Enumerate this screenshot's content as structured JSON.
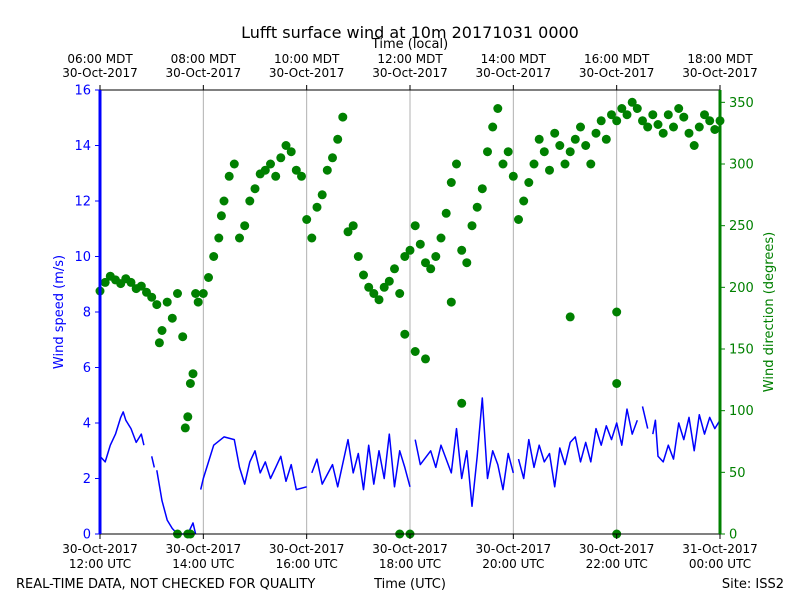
{
  "chart_data": {
    "type": "line+scatter",
    "title": "Lufft surface wind at 10m 20171031 0000",
    "top_axis_label": "Time (local)",
    "bottom_axis_label": "Time (UTC)",
    "footer_left": "REAL-TIME DATA, NOT CHECKED FOR QUALITY",
    "footer_right": "Site: ISS2",
    "ylabel_left": "Wind speed (m/s)",
    "ylabel_right": "Wind direction (degrees)",
    "colors": {
      "speed": "#0000ff",
      "direction": "#008000",
      "grid": "#b0b0b0"
    },
    "x_range_hours": [
      12,
      24
    ],
    "y_left_range": [
      0,
      16
    ],
    "y_right_range": [
      0,
      360
    ],
    "y_left_ticks": [
      "0",
      "2",
      "4",
      "6",
      "8",
      "10",
      "12",
      "14",
      "16"
    ],
    "y_right_ticks": [
      "0",
      "50",
      "100",
      "150",
      "200",
      "250",
      "300",
      "350"
    ],
    "bottom_ticks": [
      {
        "hour": 12,
        "line1": "30-Oct-2017",
        "line2": "12:00 UTC"
      },
      {
        "hour": 14,
        "line1": "30-Oct-2017",
        "line2": "14:00 UTC"
      },
      {
        "hour": 16,
        "line1": "30-Oct-2017",
        "line2": "16:00 UTC"
      },
      {
        "hour": 18,
        "line1": "30-Oct-2017",
        "line2": "18:00 UTC"
      },
      {
        "hour": 20,
        "line1": "30-Oct-2017",
        "line2": "20:00 UTC"
      },
      {
        "hour": 22,
        "line1": "30-Oct-2017",
        "line2": "22:00 UTC"
      },
      {
        "hour": 24,
        "line1": "31-Oct-2017",
        "line2": "00:00 UTC"
      }
    ],
    "top_ticks": [
      {
        "hour": 12,
        "line1": "06:00 MDT",
        "line2": "30-Oct-2017"
      },
      {
        "hour": 14,
        "line1": "08:00 MDT",
        "line2": "30-Oct-2017"
      },
      {
        "hour": 16,
        "line1": "10:00 MDT",
        "line2": "30-Oct-2017"
      },
      {
        "hour": 18,
        "line1": "12:00 MDT",
        "line2": "30-Oct-2017"
      },
      {
        "hour": 20,
        "line1": "14:00 MDT",
        "line2": "30-Oct-2017"
      },
      {
        "hour": 22,
        "line1": "16:00 MDT",
        "line2": "30-Oct-2017"
      },
      {
        "hour": 24,
        "line1": "18:00 MDT",
        "line2": "30-Oct-2017"
      }
    ],
    "speed_series": {
      "name": "Wind speed (m/s)",
      "segments": [
        [
          [
            12.0,
            2.8
          ],
          [
            12.1,
            2.6
          ],
          [
            12.2,
            3.2
          ],
          [
            12.3,
            3.6
          ],
          [
            12.4,
            4.2
          ],
          [
            12.45,
            4.4
          ],
          [
            12.5,
            4.1
          ],
          [
            12.6,
            3.8
          ],
          [
            12.7,
            3.3
          ],
          [
            12.8,
            3.6
          ],
          [
            12.85,
            3.2
          ]
        ],
        [
          [
            13.0,
            2.8
          ],
          [
            13.05,
            2.4
          ]
        ],
        [
          [
            13.1,
            2.3
          ],
          [
            13.2,
            1.2
          ],
          [
            13.3,
            0.5
          ],
          [
            13.4,
            0.2
          ],
          [
            13.5,
            0.0
          ],
          [
            13.7,
            0.0
          ],
          [
            13.8,
            0.4
          ],
          [
            13.85,
            0.0
          ]
        ],
        [
          [
            13.95,
            1.6
          ],
          [
            14.0,
            2.0
          ],
          [
            14.1,
            2.6
          ],
          [
            14.2,
            3.2
          ],
          [
            14.4,
            3.5
          ],
          [
            14.6,
            3.4
          ],
          [
            14.7,
            2.4
          ],
          [
            14.8,
            1.8
          ],
          [
            14.9,
            2.6
          ],
          [
            15.0,
            3.0
          ],
          [
            15.1,
            2.2
          ],
          [
            15.2,
            2.6
          ],
          [
            15.3,
            2.0
          ],
          [
            15.4,
            2.4
          ],
          [
            15.5,
            2.8
          ],
          [
            15.6,
            1.9
          ],
          [
            15.7,
            2.5
          ],
          [
            15.8,
            1.6
          ],
          [
            16.0,
            1.7
          ]
        ],
        [
          [
            16.1,
            2.2
          ],
          [
            16.2,
            2.7
          ],
          [
            16.3,
            1.8
          ],
          [
            16.5,
            2.5
          ],
          [
            16.6,
            1.7
          ],
          [
            16.8,
            3.4
          ],
          [
            16.9,
            2.2
          ],
          [
            17.0,
            2.9
          ],
          [
            17.1,
            1.6
          ],
          [
            17.2,
            3.2
          ],
          [
            17.3,
            1.8
          ],
          [
            17.4,
            3.0
          ],
          [
            17.5,
            2.0
          ],
          [
            17.6,
            3.6
          ],
          [
            17.7,
            1.7
          ],
          [
            17.8,
            3.0
          ],
          [
            17.9,
            2.4
          ],
          [
            18.0,
            1.7
          ]
        ],
        [
          [
            18.1,
            3.4
          ],
          [
            18.2,
            2.5
          ],
          [
            18.4,
            3.0
          ],
          [
            18.5,
            2.4
          ],
          [
            18.6,
            3.2
          ],
          [
            18.8,
            2.2
          ],
          [
            18.9,
            3.8
          ],
          [
            19.0,
            2.0
          ],
          [
            19.1,
            3.0
          ],
          [
            19.2,
            1.0
          ],
          [
            19.3,
            2.8
          ],
          [
            19.4,
            4.9
          ],
          [
            19.5,
            2.0
          ],
          [
            19.6,
            3.0
          ],
          [
            19.7,
            2.5
          ],
          [
            19.8,
            1.6
          ],
          [
            19.9,
            2.9
          ],
          [
            20.0,
            2.2
          ]
        ],
        [
          [
            20.1,
            2.7
          ],
          [
            20.2,
            2.0
          ],
          [
            20.3,
            3.4
          ],
          [
            20.4,
            2.4
          ],
          [
            20.5,
            3.2
          ],
          [
            20.6,
            2.6
          ],
          [
            20.7,
            2.9
          ],
          [
            20.8,
            1.7
          ],
          [
            20.9,
            3.1
          ],
          [
            21.0,
            2.5
          ],
          [
            21.1,
            3.3
          ],
          [
            21.2,
            3.5
          ],
          [
            21.3,
            2.6
          ],
          [
            21.4,
            3.3
          ],
          [
            21.5,
            2.6
          ],
          [
            21.6,
            3.8
          ],
          [
            21.7,
            3.2
          ],
          [
            21.8,
            3.9
          ],
          [
            21.9,
            3.4
          ],
          [
            22.0,
            4.0
          ],
          [
            22.1,
            3.2
          ],
          [
            22.2,
            4.5
          ],
          [
            22.3,
            3.6
          ],
          [
            22.4,
            4.1
          ]
        ],
        [
          [
            22.5,
            4.6
          ],
          [
            22.6,
            3.8
          ]
        ],
        [
          [
            22.7,
            3.6
          ],
          [
            22.75,
            4.1
          ],
          [
            22.8,
            2.8
          ],
          [
            22.9,
            2.6
          ],
          [
            23.0,
            3.2
          ],
          [
            23.1,
            2.7
          ],
          [
            23.2,
            4.0
          ],
          [
            23.3,
            3.4
          ],
          [
            23.4,
            4.2
          ],
          [
            23.5,
            3.0
          ],
          [
            23.6,
            4.3
          ],
          [
            23.7,
            3.6
          ],
          [
            23.8,
            4.2
          ],
          [
            23.9,
            3.8
          ],
          [
            24.0,
            4.1
          ]
        ]
      ]
    },
    "direction_points": [
      [
        12.0,
        197
      ],
      [
        12.1,
        204
      ],
      [
        12.2,
        209
      ],
      [
        12.3,
        206
      ],
      [
        12.4,
        203
      ],
      [
        12.5,
        207
      ],
      [
        12.6,
        204
      ],
      [
        12.7,
        199
      ],
      [
        12.8,
        201
      ],
      [
        12.9,
        196
      ],
      [
        13.0,
        192
      ],
      [
        13.1,
        186
      ],
      [
        13.15,
        155
      ],
      [
        13.2,
        165
      ],
      [
        13.3,
        188
      ],
      [
        13.4,
        175
      ],
      [
        13.5,
        195
      ],
      [
        13.6,
        160
      ],
      [
        13.65,
        86
      ],
      [
        13.7,
        95
      ],
      [
        13.75,
        122
      ],
      [
        13.8,
        130
      ],
      [
        13.85,
        195
      ],
      [
        13.9,
        188
      ],
      [
        14.0,
        195
      ],
      [
        14.1,
        208
      ],
      [
        14.2,
        225
      ],
      [
        14.3,
        240
      ],
      [
        14.35,
        258
      ],
      [
        14.4,
        270
      ],
      [
        14.5,
        290
      ],
      [
        14.6,
        300
      ],
      [
        14.7,
        240
      ],
      [
        14.8,
        250
      ],
      [
        14.9,
        270
      ],
      [
        15.0,
        280
      ],
      [
        15.1,
        292
      ],
      [
        15.2,
        295
      ],
      [
        15.3,
        300
      ],
      [
        15.4,
        290
      ],
      [
        15.5,
        305
      ],
      [
        15.6,
        315
      ],
      [
        15.7,
        310
      ],
      [
        15.8,
        295
      ],
      [
        15.9,
        290
      ],
      [
        16.0,
        255
      ],
      [
        16.1,
        240
      ],
      [
        16.2,
        265
      ],
      [
        16.3,
        275
      ],
      [
        16.4,
        295
      ],
      [
        16.5,
        305
      ],
      [
        16.6,
        320
      ],
      [
        16.7,
        338
      ],
      [
        16.8,
        245
      ],
      [
        16.9,
        250
      ],
      [
        17.0,
        225
      ],
      [
        17.1,
        210
      ],
      [
        17.2,
        200
      ],
      [
        17.3,
        195
      ],
      [
        17.4,
        190
      ],
      [
        17.5,
        200
      ],
      [
        17.6,
        205
      ],
      [
        17.7,
        215
      ],
      [
        17.8,
        195
      ],
      [
        17.9,
        225
      ],
      [
        18.0,
        230
      ],
      [
        18.1,
        250
      ],
      [
        18.2,
        235
      ],
      [
        18.3,
        220
      ],
      [
        18.4,
        215
      ],
      [
        18.5,
        225
      ],
      [
        18.6,
        240
      ],
      [
        18.7,
        260
      ],
      [
        18.8,
        285
      ],
      [
        18.9,
        300
      ],
      [
        19.0,
        230
      ],
      [
        19.1,
        220
      ],
      [
        19.2,
        250
      ],
      [
        19.3,
        265
      ],
      [
        19.4,
        280
      ],
      [
        19.5,
        310
      ],
      [
        19.6,
        330
      ],
      [
        19.7,
        345
      ],
      [
        19.8,
        300
      ],
      [
        19.9,
        310
      ],
      [
        20.0,
        290
      ],
      [
        20.1,
        255
      ],
      [
        20.2,
        270
      ],
      [
        20.3,
        285
      ],
      [
        20.4,
        300
      ],
      [
        20.5,
        320
      ],
      [
        20.6,
        310
      ],
      [
        20.7,
        295
      ],
      [
        20.8,
        325
      ],
      [
        20.9,
        315
      ],
      [
        21.0,
        300
      ],
      [
        21.1,
        310
      ],
      [
        21.2,
        320
      ],
      [
        21.3,
        330
      ],
      [
        21.4,
        315
      ],
      [
        21.5,
        300
      ],
      [
        21.6,
        325
      ],
      [
        21.7,
        335
      ],
      [
        21.8,
        320
      ],
      [
        21.9,
        340
      ],
      [
        22.0,
        335
      ],
      [
        22.1,
        345
      ],
      [
        22.2,
        340
      ],
      [
        22.3,
        350
      ],
      [
        22.4,
        345
      ],
      [
        22.5,
        335
      ],
      [
        22.6,
        330
      ],
      [
        22.7,
        340
      ],
      [
        22.8,
        332
      ],
      [
        22.9,
        325
      ],
      [
        23.0,
        340
      ],
      [
        23.1,
        330
      ],
      [
        23.2,
        345
      ],
      [
        23.3,
        338
      ],
      [
        23.4,
        325
      ],
      [
        23.5,
        315
      ],
      [
        23.6,
        330
      ],
      [
        23.7,
        340
      ],
      [
        23.8,
        335
      ],
      [
        23.9,
        328
      ],
      [
        24.0,
        335
      ],
      [
        13.5,
        0
      ],
      [
        13.7,
        0
      ],
      [
        13.75,
        0
      ],
      [
        17.8,
        0
      ],
      [
        18.0,
        0
      ],
      [
        22.0,
        0
      ],
      [
        17.9,
        162
      ],
      [
        18.1,
        148
      ],
      [
        18.3,
        142
      ],
      [
        18.8,
        188
      ],
      [
        19.0,
        106
      ],
      [
        21.1,
        176
      ],
      [
        22.0,
        180
      ],
      [
        22.0,
        122
      ]
    ]
  }
}
